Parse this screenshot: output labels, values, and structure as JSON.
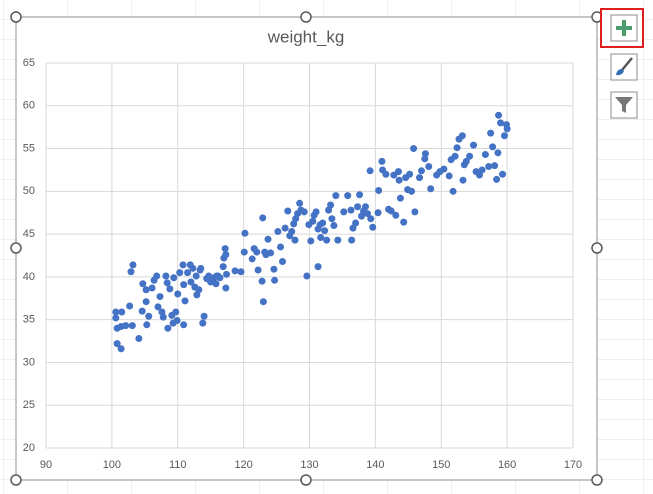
{
  "chart_data": {
    "type": "scatter",
    "title": "weight_kg",
    "color": "#4472c4",
    "grid": true,
    "xlim": [
      90,
      170
    ],
    "xticks": [
      90,
      100,
      110,
      120,
      130,
      140,
      150,
      160,
      170
    ],
    "ylim": [
      20,
      65
    ],
    "yticks": [
      20,
      25,
      30,
      35,
      40,
      45,
      50,
      55,
      60,
      65
    ],
    "x": [
      100.6,
      100.6,
      100.8,
      100.8,
      101.4,
      101.4,
      101.5,
      102.1,
      102.7,
      102.9,
      103.2,
      103.1,
      104.1,
      104.6,
      104.7,
      105.2,
      105.2,
      105.3,
      105.6,
      106.1,
      106.4,
      106.8,
      107.0,
      107.3,
      107.6,
      107.8,
      108.2,
      108.4,
      108.5,
      108.8,
      109.1,
      109.3,
      109.4,
      109.7,
      109.9,
      110.0,
      110.3,
      110.8,
      110.9,
      110.9,
      111.1,
      111.5,
      111.9,
      112.0,
      112.3,
      112.6,
      112.8,
      112.9,
      113.2,
      113.4,
      113.5,
      113.8,
      114.0,
      114.4,
      114.7,
      115.0,
      115.5,
      115.8,
      115.9,
      116.1,
      116.4,
      116.9,
      117.0,
      117.2,
      117.3,
      117.3,
      117.4,
      118.7,
      119.6,
      120.1,
      120.2,
      121.3,
      121.6,
      122.0,
      122.2,
      122.8,
      122.9,
      123.0,
      123.2,
      123.4,
      123.7,
      124.1,
      124.6,
      124.7,
      125.2,
      125.6,
      125.9,
      126.3,
      126.7,
      127.0,
      127.3,
      127.6,
      127.8,
      127.9,
      128.2,
      128.5,
      128.7,
      129.2,
      129.6,
      129.9,
      130.2,
      130.5,
      130.7,
      131.0,
      131.3,
      131.3,
      131.6,
      131.7,
      132.0,
      132.3,
      132.6,
      132.9,
      133.2,
      133.4,
      133.7,
      134.0,
      134.3,
      135.2,
      135.8,
      136.3,
      136.4,
      136.6,
      137.0,
      137.3,
      137.6,
      137.9,
      138.2,
      138.5,
      138.8,
      139.2,
      139.3,
      139.6,
      140.4,
      140.5,
      141.0,
      141.1,
      141.6,
      142.0,
      142.4,
      142.8,
      143.1,
      143.5,
      143.6,
      143.8,
      144.3,
      144.6,
      144.9,
      145.2,
      145.5,
      145.8,
      146.0,
      146.7,
      147.0,
      147.5,
      147.6,
      148.1,
      148.4,
      149.3,
      149.8,
      150.4,
      151.2,
      151.5,
      151.8,
      152.1,
      152.4,
      152.7,
      153.2,
      153.3,
      153.5,
      153.8,
      154.3,
      154.9,
      155.3,
      155.8,
      156.2,
      156.7,
      157.2,
      157.5,
      157.8,
      158.1,
      158.4,
      158.6,
      158.7,
      159.0,
      159.3,
      159.6,
      159.9,
      160.0
    ],
    "values": [
      35.9,
      35.2,
      34.0,
      32.2,
      31.6,
      34.2,
      35.9,
      34.3,
      36.6,
      40.6,
      41.4,
      34.3,
      32.8,
      36.0,
      39.2,
      37.1,
      38.5,
      34.4,
      35.4,
      38.7,
      39.6,
      40.1,
      36.5,
      37.7,
      35.9,
      35.3,
      40.1,
      39.3,
      34.0,
      38.6,
      35.5,
      34.6,
      39.9,
      35.9,
      34.9,
      38.0,
      40.5,
      41.4,
      39.1,
      34.4,
      37.2,
      40.5,
      41.4,
      39.4,
      41.0,
      38.8,
      40.1,
      37.9,
      38.5,
      40.8,
      41.0,
      34.6,
      35.4,
      39.8,
      40.1,
      39.4,
      39.9,
      39.2,
      40.1,
      40.1,
      39.9,
      41.2,
      42.2,
      43.3,
      42.6,
      38.7,
      40.3,
      40.7,
      40.6,
      42.9,
      45.1,
      42.1,
      43.3,
      42.9,
      40.8,
      39.5,
      46.9,
      37.1,
      42.9,
      42.6,
      44.4,
      42.8,
      40.9,
      39.6,
      45.3,
      43.5,
      41.8,
      45.7,
      47.7,
      44.8,
      45.3,
      46.2,
      44.3,
      46.8,
      47.4,
      48.6,
      47.8,
      47.6,
      40.1,
      46.1,
      44.2,
      46.5,
      47.2,
      47.6,
      45.6,
      41.2,
      46.1,
      44.6,
      46.3,
      45.4,
      44.3,
      47.8,
      48.4,
      46.8,
      46.0,
      49.5,
      44.3,
      47.6,
      49.5,
      47.8,
      44.3,
      45.7,
      46.3,
      48.2,
      49.6,
      47.1,
      47.7,
      48.2,
      47.4,
      52.4,
      46.8,
      45.8,
      47.5,
      50.1,
      53.5,
      52.5,
      52.0,
      47.9,
      47.7,
      51.9,
      47.2,
      52.3,
      51.3,
      49.2,
      46.4,
      51.6,
      50.2,
      52.0,
      50.0,
      55.0,
      47.6,
      51.6,
      52.4,
      53.8,
      54.4,
      52.9,
      50.3,
      51.9,
      52.3,
      52.6,
      51.8,
      53.7,
      50.0,
      54.1,
      55.1,
      56.1,
      56.5,
      51.3,
      53.1,
      53.5,
      54.1,
      55.4,
      52.3,
      51.9,
      52.5,
      54.3,
      52.9,
      56.8,
      55.2,
      53.0,
      51.4,
      54.5,
      58.9,
      58.0,
      52.0,
      56.5,
      57.8,
      57.3
    ]
  }
}
